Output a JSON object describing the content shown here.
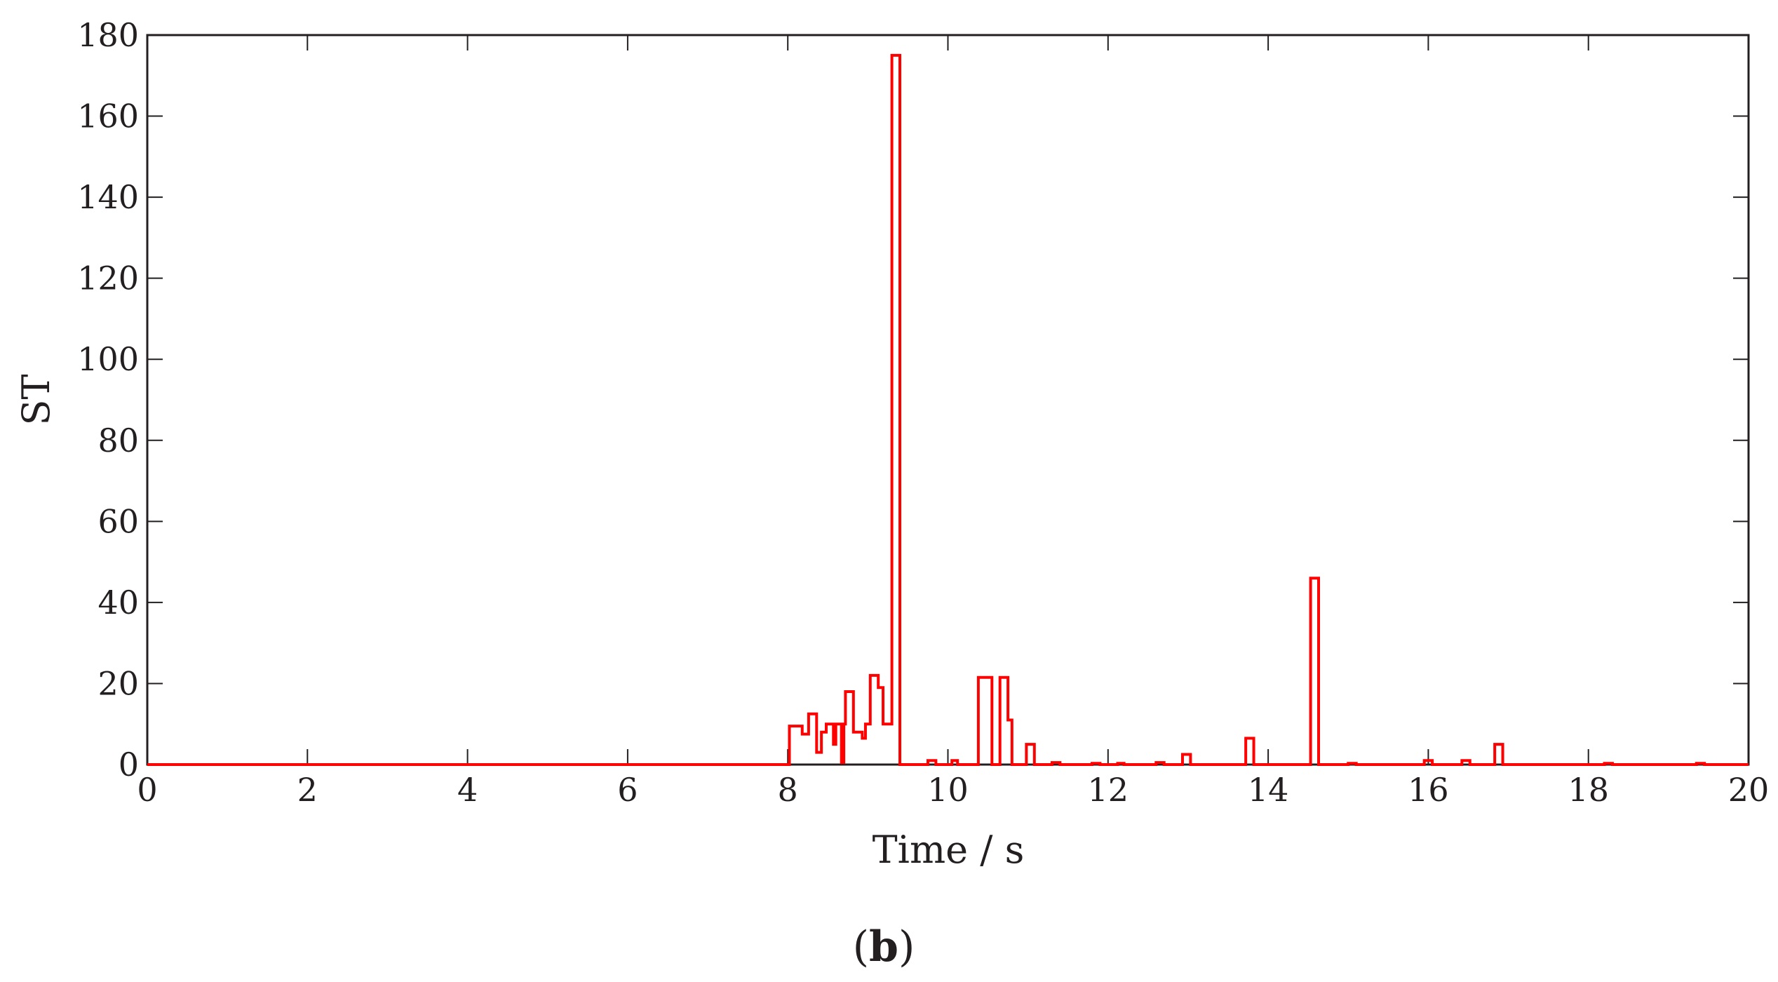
{
  "chart_data": {
    "type": "line",
    "xlabel": "Time / s",
    "ylabel": "ST",
    "panel_label": {
      "open": "(",
      "letter": "b",
      "close": ")"
    },
    "xlim": [
      0,
      20
    ],
    "ylim": [
      0,
      180
    ],
    "xticks": [
      0,
      2,
      4,
      6,
      8,
      10,
      12,
      14,
      16,
      18,
      20
    ],
    "yticks": [
      0,
      20,
      40,
      60,
      80,
      100,
      120,
      140,
      160,
      180
    ],
    "grid": false,
    "series": [
      {
        "color": "#ff0000",
        "step": true,
        "points": [
          [
            0,
            0
          ],
          [
            8.0,
            0
          ],
          [
            8.02,
            9.5
          ],
          [
            8.18,
            7.5
          ],
          [
            8.26,
            12.5
          ],
          [
            8.36,
            3
          ],
          [
            8.42,
            8
          ],
          [
            8.48,
            10
          ],
          [
            8.57,
            5
          ],
          [
            8.6,
            10
          ],
          [
            8.67,
            0.5
          ],
          [
            8.7,
            10
          ],
          [
            8.72,
            18
          ],
          [
            8.82,
            8
          ],
          [
            8.93,
            6.5
          ],
          [
            8.97,
            10
          ],
          [
            9.03,
            22
          ],
          [
            9.13,
            19
          ],
          [
            9.19,
            10
          ],
          [
            9.3,
            175
          ],
          [
            9.4,
            0
          ],
          [
            9.75,
            1
          ],
          [
            9.85,
            0
          ],
          [
            10.05,
            1
          ],
          [
            10.12,
            0
          ],
          [
            10.38,
            21.5
          ],
          [
            10.55,
            0
          ],
          [
            10.65,
            21.5
          ],
          [
            10.75,
            11
          ],
          [
            10.8,
            0
          ],
          [
            10.98,
            5
          ],
          [
            11.08,
            0
          ],
          [
            11.3,
            0.5
          ],
          [
            11.4,
            0
          ],
          [
            11.8,
            0.3
          ],
          [
            11.9,
            0
          ],
          [
            12.12,
            0.3
          ],
          [
            12.2,
            0
          ],
          [
            12.6,
            0.5
          ],
          [
            12.7,
            0
          ],
          [
            12.93,
            2.5
          ],
          [
            13.03,
            0
          ],
          [
            13.72,
            6.5
          ],
          [
            13.82,
            0
          ],
          [
            14.53,
            46
          ],
          [
            14.63,
            0
          ],
          [
            15.0,
            0.3
          ],
          [
            15.1,
            0
          ],
          [
            15.95,
            1
          ],
          [
            16.05,
            0
          ],
          [
            16.42,
            1
          ],
          [
            16.52,
            0
          ],
          [
            16.83,
            5
          ],
          [
            16.93,
            0
          ],
          [
            18.2,
            0.3
          ],
          [
            18.3,
            0
          ],
          [
            19.35,
            0.3
          ],
          [
            19.45,
            0
          ],
          [
            20,
            0
          ]
        ]
      }
    ]
  }
}
